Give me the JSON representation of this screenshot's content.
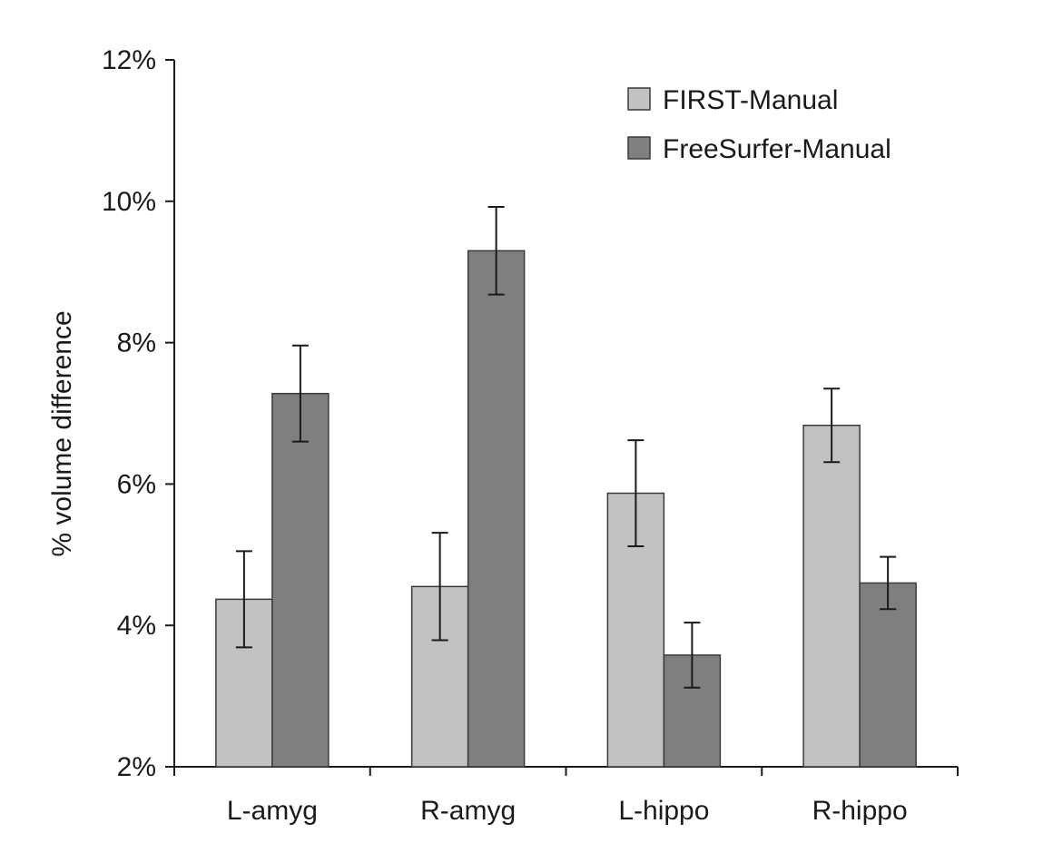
{
  "chart_data": {
    "type": "bar",
    "title": "",
    "xlabel": "",
    "ylabel": "% volume difference",
    "ylim": [
      2,
      12
    ],
    "yticks": [
      2,
      4,
      6,
      8,
      10,
      12
    ],
    "ytick_labels": [
      "2%",
      "4%",
      "6%",
      "8%",
      "10%",
      "12%"
    ],
    "categories": [
      "L-amyg",
      "R-amyg",
      "L-hippo",
      "R-hippo"
    ],
    "series": [
      {
        "name": "FIRST-Manual",
        "color": "#c2c2c2",
        "values": [
          4.37,
          4.55,
          5.87,
          6.83
        ],
        "error": [
          0.68,
          0.76,
          0.75,
          0.52
        ]
      },
      {
        "name": "FreeSurfer-Manual",
        "color": "#7f7f7f",
        "values": [
          7.28,
          9.3,
          3.58,
          4.6
        ],
        "error": [
          0.68,
          0.62,
          0.46,
          0.37
        ]
      }
    ],
    "legend_position": "top-right",
    "grid": false
  }
}
